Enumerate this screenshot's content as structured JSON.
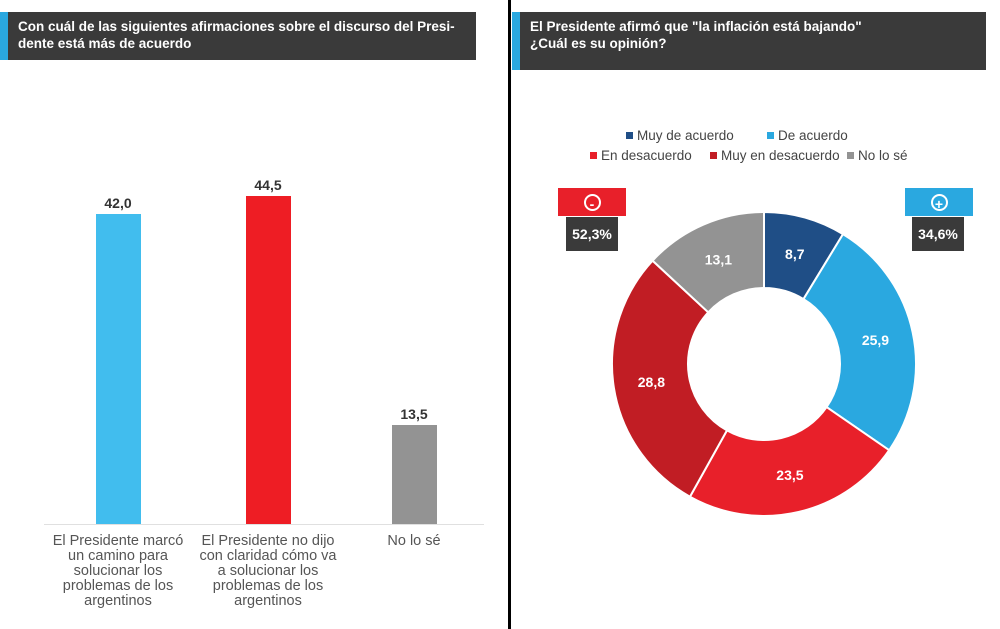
{
  "left": {
    "title": "Con cuál de las siguientes afirmaciones sobre el discurso del Presi- dente está más de acuerdo"
  },
  "right": {
    "title_line1": "El Presidente afirmó que \"la inflación está bajando\"",
    "title_line2": "¿Cuál es su opinión?",
    "badges": {
      "negative": {
        "symbol": "-",
        "value": "52,3%",
        "color": "#e8202a"
      },
      "positive": {
        "symbol": "+",
        "value": "34,6%",
        "color": "#2aa8e0"
      }
    }
  },
  "chart_data": [
    {
      "type": "bar",
      "title": "Con cuál de las siguientes afirmaciones sobre el discurso del Presi- dente está más de acuerdo",
      "categories": [
        "El Presidente marcó un camino para solucionar los problemas de los argentinos",
        "El Presidente no dijo con claridad cómo va a solucionar los problemas de los argentinos",
        "No lo sé"
      ],
      "values": [
        42.0,
        44.5,
        13.5
      ],
      "value_labels": [
        "42,0",
        "44,5",
        "13,5"
      ],
      "colors": [
        "#41bdee",
        "#ee1d24",
        "#939393"
      ],
      "ylim": [
        0,
        50
      ]
    },
    {
      "type": "pie",
      "donut": true,
      "title": "El Presidente afirmó que \"la inflación está bajando\" ¿Cuál es su opinión?",
      "categories": [
        "Muy de acuerdo",
        "De acuerdo",
        "En desacuerdo",
        "Muy en desacuerdo",
        "No lo sé"
      ],
      "values": [
        8.7,
        25.9,
        23.5,
        28.8,
        13.1
      ],
      "value_labels": [
        "8,7",
        "25,9",
        "23,5",
        "28,8",
        "13,1"
      ],
      "colors": [
        "#1f4e86",
        "#2aa8e0",
        "#e8202a",
        "#c11d24",
        "#939393"
      ],
      "legend_position": "top"
    }
  ]
}
